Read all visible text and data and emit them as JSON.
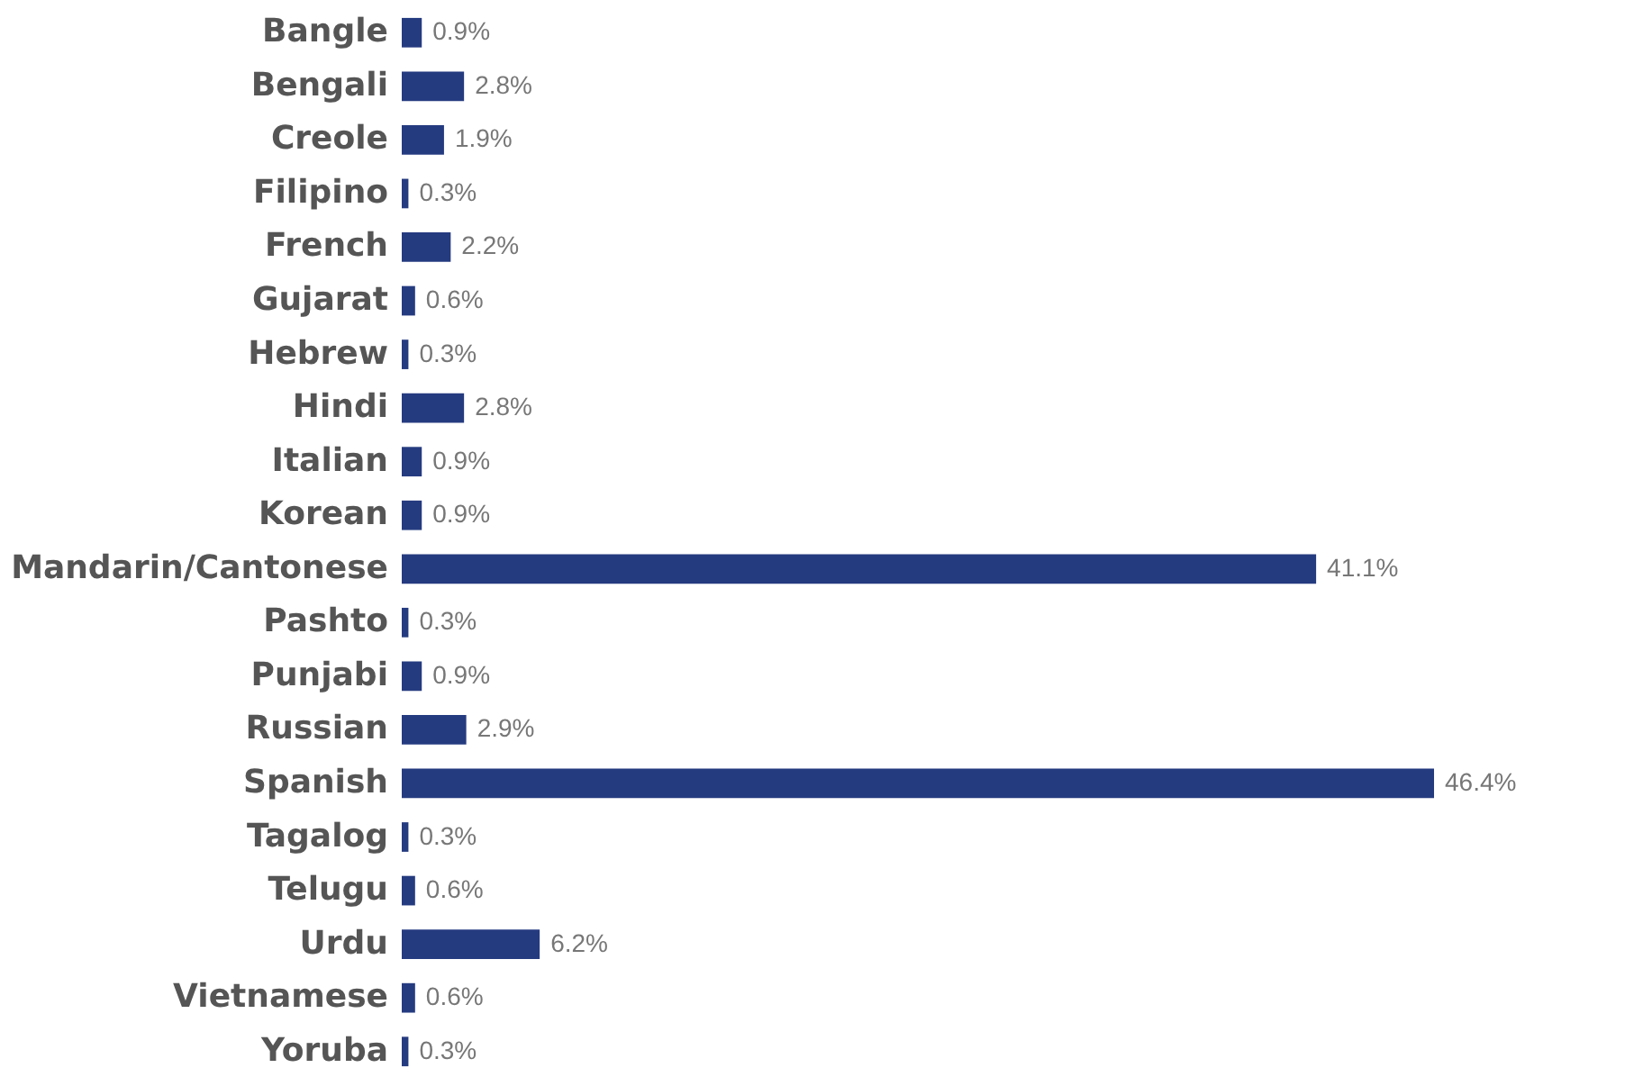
{
  "chart_data": {
    "type": "bar",
    "orientation": "horizontal",
    "color": "#253b80",
    "tick_labels": "y",
    "categories": [
      "Bangle",
      "Bengali",
      "Creole",
      "Filipino",
      "French",
      "Gujarat",
      "Hebrew",
      "Hindi",
      "Italian",
      "Korean",
      "Mandarin/Cantonese",
      "Pashto",
      "Punjabi",
      "Russian",
      "Spanish",
      "Tagalog",
      "Telugu",
      "Urdu",
      "Vietnamese",
      "Yoruba"
    ],
    "values": [
      0.9,
      2.8,
      1.9,
      0.3,
      2.2,
      0.6,
      0.3,
      2.8,
      0.9,
      0.9,
      41.1,
      0.3,
      0.9,
      2.9,
      46.4,
      0.3,
      0.6,
      6.2,
      0.6,
      0.3
    ],
    "value_labels": [
      "0.9%",
      "2.8%",
      "1.9%",
      "0.3%",
      "2.2%",
      "0.6%",
      "0.3%",
      "2.8%",
      "0.9%",
      "0.9%",
      "41.1%",
      "0.3%",
      "0.9%",
      "2.9%",
      "46.4%",
      "0.3%",
      "0.6%",
      "6.2%",
      "0.6%",
      "0.3%"
    ]
  }
}
